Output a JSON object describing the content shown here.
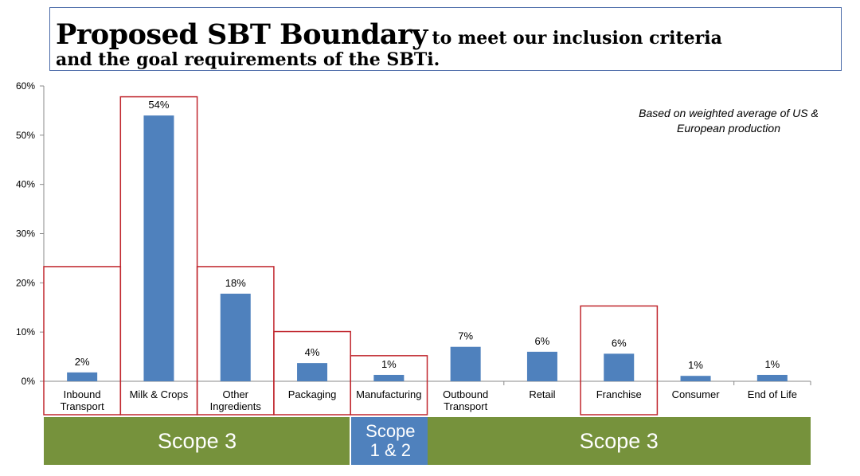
{
  "title": {
    "main": "Proposed SBT Boundary",
    "rest_line1": "to meet our inclusion criteria",
    "rest_line2": "and the goal requirements of the SBTi."
  },
  "note": {
    "line1": "Based on weighted average of US &",
    "line2": "European production"
  },
  "colors": {
    "bar": "#4f81bd",
    "boundary_box": "#c0262d",
    "scope3": "#76923c",
    "scope12": "#4f81bd"
  },
  "chart_data": {
    "type": "bar",
    "categories": [
      [
        "Inbound",
        "Transport"
      ],
      [
        "Milk & Crops"
      ],
      [
        "Other",
        "Ingredients"
      ],
      [
        "Packaging"
      ],
      [
        "Manufacturing"
      ],
      [
        "Outbound",
        "Transport"
      ],
      [
        "Retail"
      ],
      [
        "Franchise"
      ],
      [
        "Consumer"
      ],
      [
        "End of Life"
      ]
    ],
    "values": [
      1.8,
      54,
      17.8,
      3.7,
      1.3,
      7,
      6,
      5.6,
      1.1,
      1.3
    ],
    "data_labels": [
      "2%",
      "54%",
      "18%",
      "4%",
      "1%",
      "7%",
      "6%",
      "6%",
      "1%",
      "1%"
    ],
    "y_ticks": [
      "0%",
      "10%",
      "20%",
      "30%",
      "40%",
      "50%",
      "60%"
    ],
    "y_tick_values": [
      0,
      10,
      20,
      30,
      40,
      50,
      60
    ],
    "ylim": [
      0,
      60
    ],
    "grid": false,
    "boundary_boxes": [
      {
        "category": 0,
        "top_value": 23.3
      },
      {
        "category": 1,
        "top_value": 57.8
      },
      {
        "category": 2,
        "top_value": 23.3
      },
      {
        "category": 3,
        "top_value": 10.1
      },
      {
        "category": 4,
        "top_value": 5.2
      },
      {
        "category": 7,
        "top_value": 15.3
      }
    ]
  },
  "scopes": [
    {
      "label_lines": [
        "Scope 3"
      ],
      "style": "green",
      "from": 0,
      "to": 3
    },
    {
      "label_lines": [
        "Scope",
        "1 & 2"
      ],
      "style": "blue",
      "from": 4,
      "to": 4
    },
    {
      "label_lines": [
        "Scope 3"
      ],
      "style": "green",
      "from": 5,
      "to": 9
    }
  ]
}
